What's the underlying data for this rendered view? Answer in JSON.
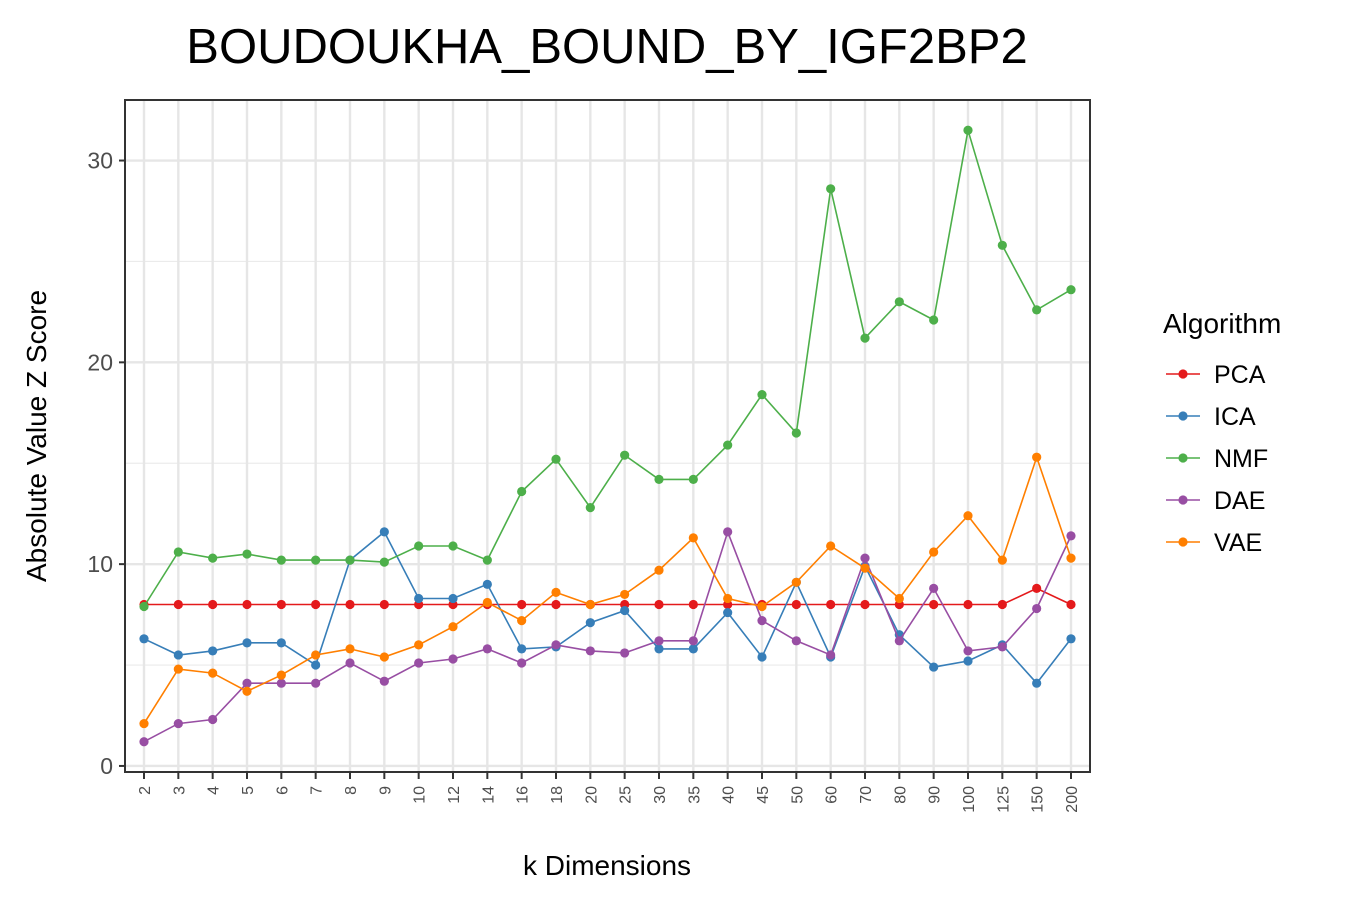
{
  "chart_data": {
    "type": "line",
    "title": "BOUDOUKHA_BOUND_BY_IGF2BP2",
    "xlabel": "k Dimensions",
    "ylabel": "Absolute Value Z Score",
    "categories": [
      "2",
      "3",
      "4",
      "5",
      "6",
      "7",
      "8",
      "9",
      "10",
      "12",
      "14",
      "16",
      "18",
      "20",
      "25",
      "30",
      "35",
      "40",
      "45",
      "50",
      "60",
      "70",
      "80",
      "90",
      "100",
      "125",
      "150",
      "200"
    ],
    "ylim": [
      -0.3,
      33
    ],
    "yticks": [
      0,
      10,
      20,
      30
    ],
    "grid": true,
    "legend": {
      "title": "Algorithm",
      "position": "right"
    },
    "series": [
      {
        "name": "PCA",
        "color": "#E41A1C",
        "values": [
          8.0,
          8.0,
          8.0,
          8.0,
          8.0,
          8.0,
          8.0,
          8.0,
          8.0,
          8.0,
          8.0,
          8.0,
          8.0,
          8.0,
          8.0,
          8.0,
          8.0,
          8.0,
          8.0,
          8.0,
          8.0,
          8.0,
          8.0,
          8.0,
          8.0,
          8.0,
          8.8,
          8.0
        ]
      },
      {
        "name": "ICA",
        "color": "#377EB8",
        "values": [
          6.3,
          5.5,
          5.7,
          6.1,
          6.1,
          5.0,
          10.2,
          11.6,
          8.3,
          8.3,
          9.0,
          5.8,
          5.9,
          7.1,
          7.7,
          5.8,
          5.8,
          7.6,
          5.4,
          9.1,
          5.4,
          9.9,
          6.5,
          4.9,
          5.2,
          6.0,
          4.1,
          6.3
        ]
      },
      {
        "name": "NMF",
        "color": "#4DAF4A",
        "values": [
          7.9,
          10.6,
          10.3,
          10.5,
          10.2,
          10.2,
          10.2,
          10.1,
          10.9,
          10.9,
          10.2,
          13.6,
          15.2,
          12.8,
          15.4,
          14.2,
          14.2,
          15.9,
          18.4,
          16.5,
          28.6,
          21.2,
          23.0,
          22.1,
          31.5,
          25.8,
          22.6,
          23.6
        ]
      },
      {
        "name": "DAE",
        "color": "#984EA3",
        "values": [
          1.2,
          2.1,
          2.3,
          4.1,
          4.1,
          4.1,
          5.1,
          4.2,
          5.1,
          5.3,
          5.8,
          5.1,
          6.0,
          5.7,
          5.6,
          6.2,
          6.2,
          11.6,
          7.2,
          6.2,
          5.5,
          10.3,
          6.2,
          8.8,
          5.7,
          5.9,
          7.8,
          11.4
        ]
      },
      {
        "name": "VAE",
        "color": "#FF7F00",
        "values": [
          2.1,
          4.8,
          4.6,
          3.7,
          4.5,
          5.5,
          5.8,
          5.4,
          6.0,
          6.9,
          8.1,
          7.2,
          8.6,
          8.0,
          8.5,
          9.7,
          11.3,
          8.3,
          7.9,
          9.1,
          10.9,
          9.8,
          8.3,
          10.6,
          12.4,
          10.2,
          15.3,
          10.3
        ]
      }
    ]
  }
}
